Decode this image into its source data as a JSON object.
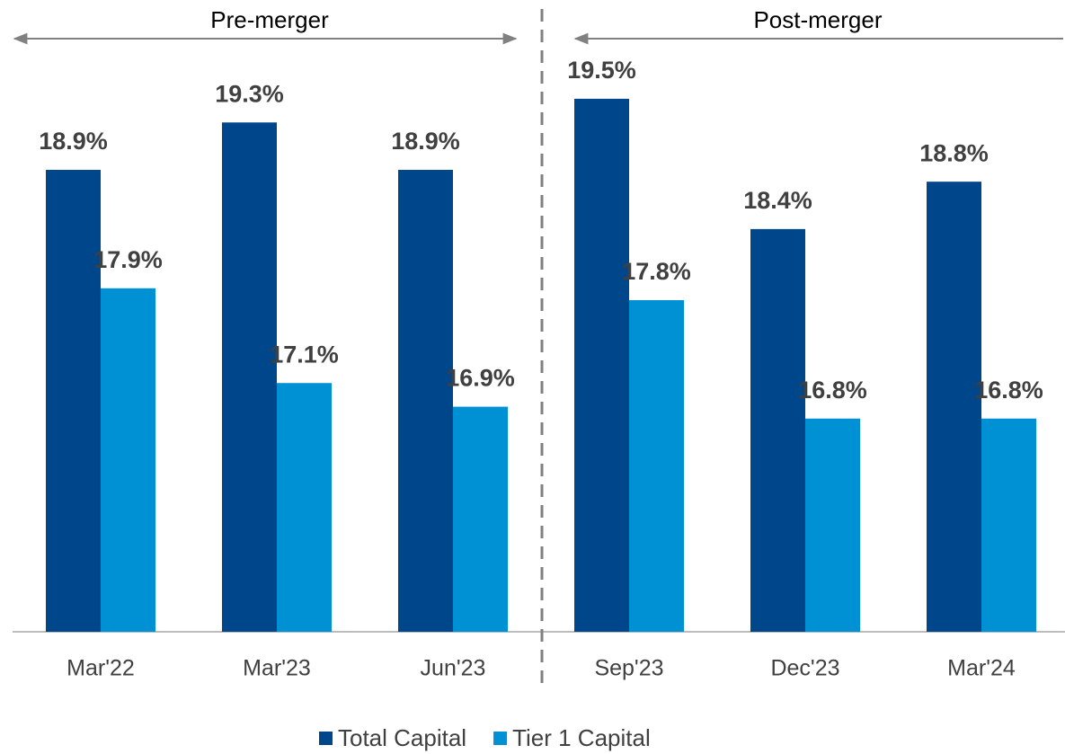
{
  "chart_data": {
    "type": "bar",
    "annotations": [
      "Pre-merger",
      "Post-merger"
    ],
    "categories": [
      "Mar'22",
      "Mar'23",
      "Jun'23",
      "Sep'23",
      "Dec'23",
      "Mar'24"
    ],
    "series": [
      {
        "name": "Total Capital",
        "color": "#00468b",
        "values": [
          18.9,
          19.3,
          18.9,
          19.5,
          18.4,
          18.8
        ],
        "value_labels": [
          "18.9%",
          "19.3%",
          "18.9%",
          "19.5%",
          "18.4%",
          "18.8%"
        ]
      },
      {
        "name": "Tier 1 Capital",
        "color": "#0090d4",
        "values": [
          17.9,
          17.1,
          16.9,
          17.8,
          16.8,
          16.8
        ],
        "value_labels": [
          "17.9%",
          "17.1%",
          "16.9%",
          "17.8%",
          "16.8%",
          "16.8%"
        ]
      }
    ],
    "ylim": [
      15,
      20
    ],
    "legend": "bottom"
  }
}
